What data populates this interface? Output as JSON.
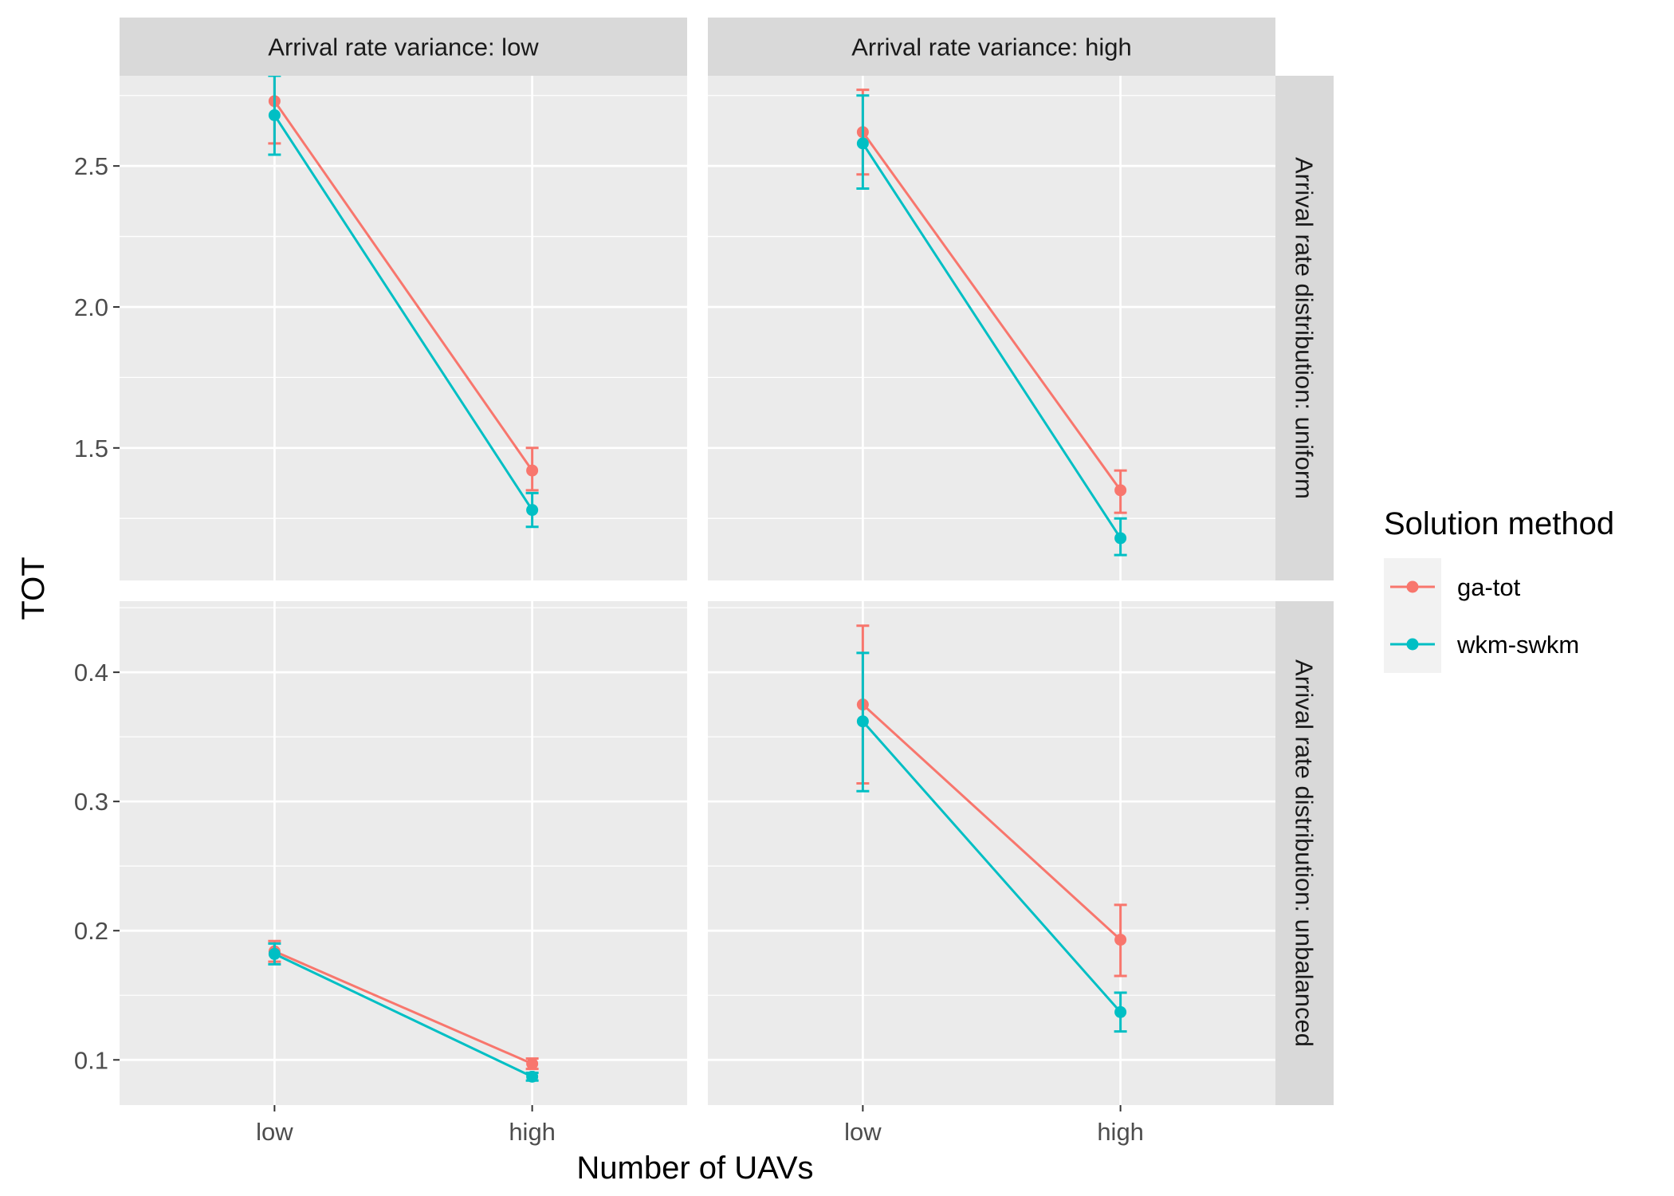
{
  "chart_data": {
    "type": "line",
    "xlabel": "Number of UAVs",
    "ylabel": "TOT",
    "categories": [
      "low",
      "high"
    ],
    "legend": {
      "title": "Solution method",
      "position": "right"
    },
    "series_styles": [
      {
        "name": "ga-tot",
        "color": "#F8766D"
      },
      {
        "name": "wkm-swkm",
        "color": "#00BFC4"
      }
    ],
    "col_facets": [
      "Arrival rate variance: low",
      "Arrival rate variance: high"
    ],
    "row_facets": [
      {
        "label": "Arrival rate distribution: uniform",
        "ylim": [
          1.03,
          2.82
        ],
        "yticks": [
          1.5,
          2.0,
          2.5
        ],
        "ytick_labels": [
          "1.5",
          "2.0",
          "2.5"
        ]
      },
      {
        "label": "Arrival rate distribution: unbalanced",
        "ylim": [
          0.065,
          0.455
        ],
        "yticks": [
          0.1,
          0.2,
          0.3,
          0.4
        ],
        "ytick_labels": [
          "0.1",
          "0.2",
          "0.3",
          "0.4"
        ]
      }
    ],
    "panels": [
      {
        "row": 0,
        "col": 0,
        "series": [
          {
            "name": "ga-tot",
            "values": [
              2.73,
              1.42
            ],
            "err_low": [
              2.58,
              1.35
            ],
            "err_high": [
              2.87,
              1.5
            ]
          },
          {
            "name": "wkm-swkm",
            "values": [
              2.68,
              1.28
            ],
            "err_low": [
              2.54,
              1.22
            ],
            "err_high": [
              2.82,
              1.34
            ]
          }
        ]
      },
      {
        "row": 0,
        "col": 1,
        "series": [
          {
            "name": "ga-tot",
            "values": [
              2.62,
              1.35
            ],
            "err_low": [
              2.47,
              1.27
            ],
            "err_high": [
              2.77,
              1.42
            ]
          },
          {
            "name": "wkm-swkm",
            "values": [
              2.58,
              1.18
            ],
            "err_low": [
              2.42,
              1.12
            ],
            "err_high": [
              2.75,
              1.25
            ]
          }
        ]
      },
      {
        "row": 1,
        "col": 0,
        "series": [
          {
            "name": "ga-tot",
            "values": [
              0.184,
              0.097
            ],
            "err_low": [
              0.176,
              0.093
            ],
            "err_high": [
              0.192,
              0.101
            ]
          },
          {
            "name": "wkm-swkm",
            "values": [
              0.182,
              0.087
            ],
            "err_low": [
              0.174,
              0.084
            ],
            "err_high": [
              0.19,
              0.09
            ]
          }
        ]
      },
      {
        "row": 1,
        "col": 1,
        "series": [
          {
            "name": "ga-tot",
            "values": [
              0.375,
              0.193
            ],
            "err_low": [
              0.314,
              0.165
            ],
            "err_high": [
              0.436,
              0.22
            ]
          },
          {
            "name": "wkm-swkm",
            "values": [
              0.362,
              0.137
            ],
            "err_low": [
              0.308,
              0.122
            ],
            "err_high": [
              0.415,
              0.152
            ]
          }
        ]
      }
    ],
    "grid": true
  }
}
